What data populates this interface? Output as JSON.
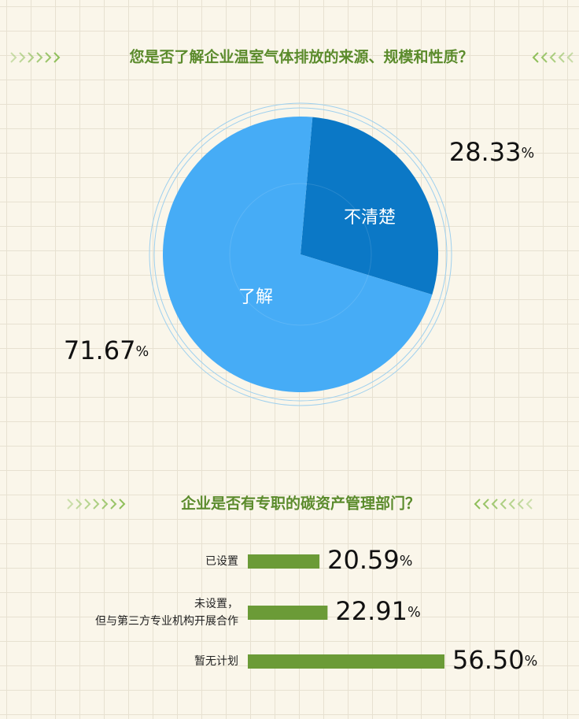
{
  "chart_data": [
    {
      "type": "pie",
      "title": "您是否了解企业温室气体排放的来源、规模和性质？",
      "categories": [
        "不清楚",
        "了解"
      ],
      "values": [
        28.33,
        71.67
      ],
      "value_labels": [
        "28.33%",
        "71.67%"
      ],
      "colors": [
        "#0b78c6",
        "#46acf6"
      ]
    },
    {
      "type": "bar",
      "orientation": "horizontal",
      "title": "企业是否有专职的碳资产管理部门？",
      "categories": [
        "已设置",
        "未设置，\n但与第三方专业机构开展合作",
        "暂无计划"
      ],
      "values": [
        20.59,
        22.91,
        56.5
      ],
      "value_labels": [
        "20.59%",
        "22.91%",
        "56.50%"
      ],
      "color": "#6b9b37"
    }
  ]
}
